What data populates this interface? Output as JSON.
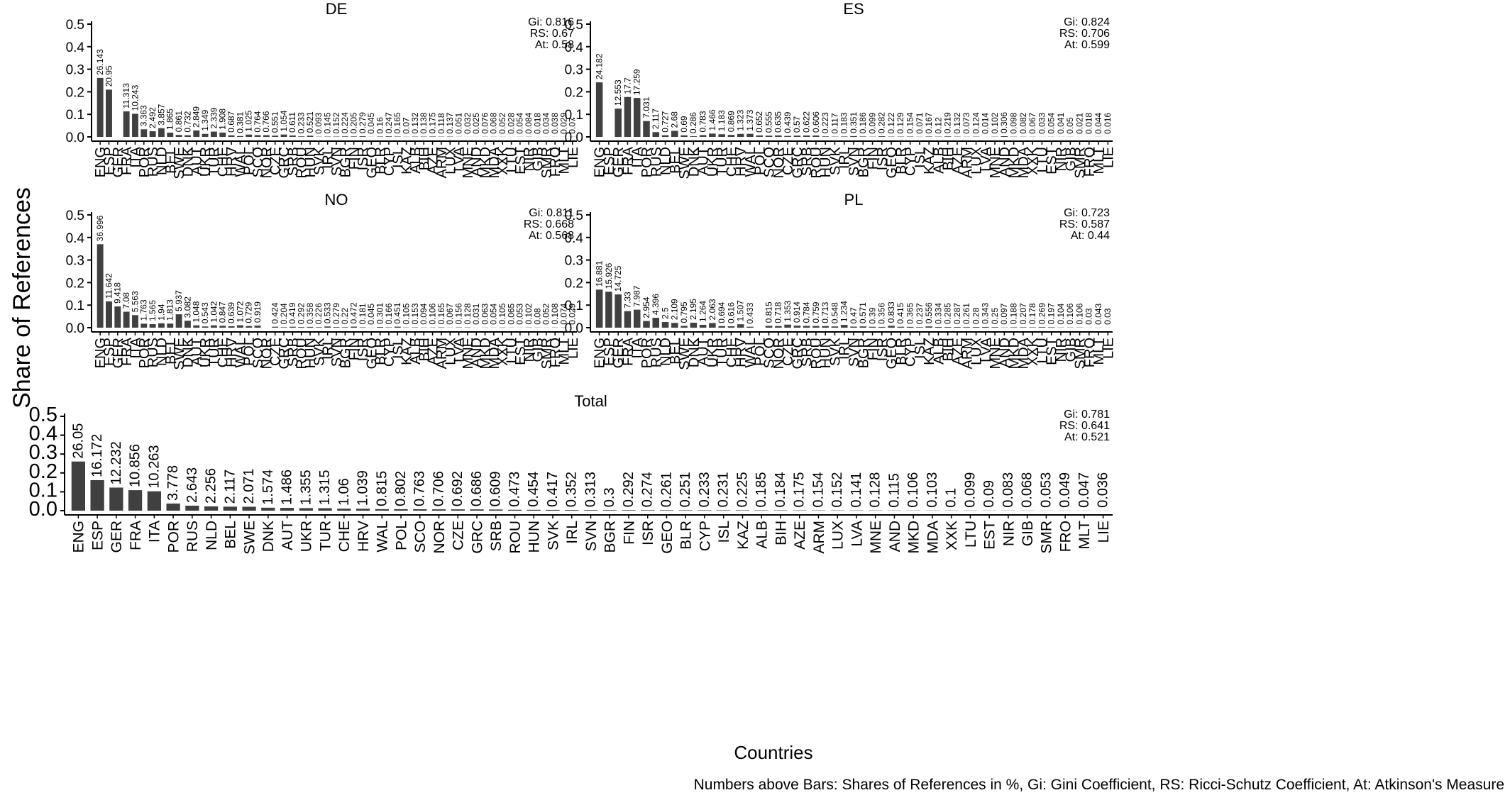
{
  "figure": {
    "ylabel": "Share of References",
    "xlabel": "Countries",
    "caption": "Numbers above Bars: Shares of References in %, Gi: Gini Coefficient, RS: Ricci-Schutz Coefficient, At: Atkinson's Measure",
    "bar_color": "#404040"
  },
  "chart_data": [
    {
      "type": "bar",
      "title": "DE",
      "ylim": [
        0,
        0.5
      ],
      "yticks": [
        0,
        0.1,
        0.2,
        0.3,
        0.4,
        0.5
      ],
      "ytick_labels": [
        "0.0",
        "0.1",
        "0.2",
        "0.3",
        "0.4",
        "0.5"
      ],
      "stats": [
        "Gi: 0.816",
        "RS: 0.67",
        "At: 0.58"
      ],
      "categories": [
        "ENG",
        "ESP",
        "GER",
        "FRA",
        "ITA",
        "POR",
        "RUS",
        "NLD",
        "BEL",
        "SWE",
        "DNK",
        "AUT",
        "UKR",
        "TUR",
        "CHE",
        "HRV",
        "WAL",
        "POL",
        "SCO",
        "NOR",
        "CZE",
        "GRC",
        "SRB",
        "ROU",
        "HUN",
        "SVK",
        "IRL",
        "SVN",
        "BGR",
        "FIN",
        "ISR",
        "GEO",
        "BLR",
        "CYP",
        "ISL",
        "KAZ",
        "ALB",
        "BIH",
        "AZE",
        "ARM",
        "LUX",
        "LVA",
        "MNE",
        "AND",
        "MKD",
        "MDA",
        "XXK",
        "LTU",
        "EST",
        "NIR",
        "GIB",
        "SMR",
        "FRO",
        "MLT",
        "LIE"
      ],
      "labels": [
        "26.143",
        "20.95",
        "",
        "11.313",
        "10.243",
        "3.363",
        "2.492",
        "3.857",
        "1.865",
        "0.861",
        "0.732",
        "2.849",
        "1.349",
        "2.339",
        "1.908",
        "0.687",
        "0.381",
        "1.025",
        "0.764",
        "0.766",
        "0.551",
        "1.054",
        "0.611",
        "0.233",
        "0.521",
        "0.093",
        "0.145",
        "0.152",
        "0.224",
        "0.205",
        "0.279",
        "0.045",
        "0.16",
        "0.247",
        "0.165",
        "0.07",
        "0.132",
        "0.138",
        "0.175",
        "0.118",
        "0.137",
        "0.051",
        "0.032",
        "0.025",
        "0.076",
        "0.068",
        "0.052",
        "0.028",
        "0.054",
        "0.084",
        "0.018",
        "0.034",
        "0.038",
        "0.029",
        "0.07"
      ],
      "values": [
        0.26143,
        0.2095,
        0,
        0.11313,
        0.10243,
        0.03363,
        0.02492,
        0.03857,
        0.01865,
        0.00861,
        0.00732,
        0.02849,
        0.01349,
        0.02339,
        0.01908,
        0.00687,
        0.00381,
        0.01025,
        0.00764,
        0.00766,
        0.00551,
        0.01054,
        0.00611,
        0.00233,
        0.00521,
        0.00093,
        0.00145,
        0.00152,
        0.00224,
        0.00205,
        0.00279,
        0.00045,
        0.0016,
        0.00247,
        0.00165,
        0.0007,
        0.00132,
        0.00138,
        0.00175,
        0.00118,
        0.00137,
        0.00051,
        0.00032,
        0.00025,
        0.00076,
        0.00068,
        0.00052,
        0.00028,
        0.00054,
        0.00084,
        0.00018,
        0.00034,
        0.00038,
        0.00029,
        0.0007
      ]
    },
    {
      "type": "bar",
      "title": "ES",
      "ylim": [
        0,
        0.5
      ],
      "yticks": [
        0,
        0.1,
        0.2,
        0.3,
        0.4,
        0.5
      ],
      "ytick_labels": [
        "0.0",
        "0.1",
        "0.2",
        "0.3",
        "0.4",
        "0.5"
      ],
      "stats": [
        "Gi: 0.824",
        "RS: 0.706",
        "At: 0.599"
      ],
      "categories": [
        "ENG",
        "ESP",
        "GER",
        "FRA",
        "ITA",
        "POR",
        "RUS",
        "NLD",
        "BEL",
        "SWE",
        "DNK",
        "AUT",
        "UKR",
        "TUR",
        "CHE",
        "HRV",
        "WAL",
        "POL",
        "SCO",
        "NOR",
        "CZE",
        "GRC",
        "SRB",
        "ROU",
        "HUN",
        "SVK",
        "IRL",
        "SVN",
        "BGR",
        "FIN",
        "ISR",
        "GEO",
        "BLR",
        "CYP",
        "ISL",
        "KAZ",
        "ALB",
        "BIH",
        "AZE",
        "ARM",
        "LUX",
        "LVA",
        "MNE",
        "AND",
        "MKD",
        "MDA",
        "XXK",
        "LTU",
        "EST",
        "NIR",
        "GIB",
        "SMR",
        "FRO",
        "MLT",
        "LIE"
      ],
      "labels": [
        "24.182",
        "",
        "12.553",
        "17.7",
        "17.259",
        "7.031",
        "2.117",
        "0.727",
        "2.68",
        "0.69",
        "0.286",
        "0.783",
        "1.466",
        "1.183",
        "0.869",
        "1.323",
        "1.373",
        "0.652",
        "0.555",
        "0.635",
        "0.439",
        "0.57",
        "0.622",
        "0.606",
        "0.223",
        "0.117",
        "0.183",
        "0.351",
        "0.186",
        "0.099",
        "0.282",
        "0.122",
        "0.129",
        "0.154",
        "0.071",
        "0.167",
        "0.12",
        "0.219",
        "0.132",
        "0.073",
        "0.124",
        "0.014",
        "0.102",
        "0.306",
        "0.098",
        "0.082",
        "0.067",
        "0.033",
        "0.054",
        "0.041",
        "0.05",
        "0.021",
        "0.018",
        "0.044",
        "0.016"
      ],
      "values": [
        0.24182,
        0,
        0.12553,
        0.177,
        0.17259,
        0.07031,
        0.02117,
        0.00727,
        0.0268,
        0.0069,
        0.00286,
        0.00783,
        0.01466,
        0.01183,
        0.00869,
        0.01323,
        0.01373,
        0.00652,
        0.00555,
        0.00635,
        0.00439,
        0.0057,
        0.00622,
        0.00606,
        0.00223,
        0.00117,
        0.00183,
        0.00351,
        0.00186,
        0.00099,
        0.00282,
        0.00122,
        0.00129,
        0.00154,
        0.00071,
        0.00167,
        0.0012,
        0.00219,
        0.00132,
        0.00073,
        0.00124,
        0.00014,
        0.00102,
        0.00306,
        0.00098,
        0.00082,
        0.00067,
        0.00033,
        0.00054,
        0.00041,
        0.0005,
        0.00021,
        0.00018,
        0.00044,
        0.00016
      ]
    },
    {
      "type": "bar",
      "title": "NO",
      "ylim": [
        0,
        0.5
      ],
      "yticks": [
        0,
        0.1,
        0.2,
        0.3,
        0.4,
        0.5
      ],
      "ytick_labels": [
        "0.0",
        "0.1",
        "0.2",
        "0.3",
        "0.4",
        "0.5"
      ],
      "stats": [
        "Gi: 0.811",
        "RS: 0.668",
        "At: 0.568"
      ],
      "categories": [
        "ENG",
        "ESP",
        "GER",
        "FRA",
        "ITA",
        "POR",
        "RUS",
        "NLD",
        "BEL",
        "SWE",
        "DNK",
        "AUT",
        "UKR",
        "TUR",
        "CHE",
        "HRV",
        "WAL",
        "POL",
        "SCO",
        "NOR",
        "CZE",
        "GRC",
        "SRB",
        "ROU",
        "HUN",
        "SVK",
        "IRL",
        "SVN",
        "BGR",
        "FIN",
        "ISR",
        "GEO",
        "BLR",
        "CYP",
        "ISL",
        "KAZ",
        "ALB",
        "BIH",
        "AZE",
        "ARM",
        "LUX",
        "LVA",
        "MNE",
        "AND",
        "MKD",
        "MDA",
        "XXK",
        "LTU",
        "EST",
        "NIR",
        "GIB",
        "SMR",
        "FRO",
        "MLT",
        "LIE"
      ],
      "labels": [
        "36.996",
        "11.642",
        "9.418",
        "7.08",
        "5.563",
        "1.763",
        "1.565",
        "1.94",
        "1.813",
        "5.937",
        "3.082",
        "1.048",
        "0.543",
        "1.042",
        "0.847",
        "0.639",
        "1.072",
        "0.729",
        "0.919",
        "",
        "0.424",
        "0.204",
        "0.419",
        "0.292",
        "0.358",
        "0.226",
        "0.533",
        "0.279",
        "0.22",
        "0.472",
        "0.181",
        "0.045",
        "0.301",
        "0.166",
        "0.451",
        "0.105",
        "0.153",
        "0.094",
        "0.106",
        "0.165",
        "0.067",
        "0.156",
        "0.128",
        "0.031",
        "0.063",
        "0.054",
        "0.105",
        "0.065",
        "0.053",
        "0.102",
        "0.08",
        "0.052",
        "0.108",
        "0.074",
        "0.029"
      ],
      "values": [
        0.36996,
        0.11642,
        0.09418,
        0.0708,
        0.05563,
        0.01763,
        0.01565,
        0.0194,
        0.01813,
        0.05937,
        0.03082,
        0.01048,
        0.00543,
        0.01042,
        0.00847,
        0.00639,
        0.01072,
        0.00729,
        0.00919,
        0,
        0.00424,
        0.00204,
        0.00419,
        0.00292,
        0.00358,
        0.00226,
        0.00533,
        0.00279,
        0.0022,
        0.00472,
        0.00181,
        0.00045,
        0.00301,
        0.00166,
        0.00451,
        0.00105,
        0.00153,
        0.00094,
        0.00106,
        0.00165,
        0.00067,
        0.00156,
        0.00128,
        0.00031,
        0.00063,
        0.00054,
        0.00105,
        0.00065,
        0.00053,
        0.00102,
        0.0008,
        0.00052,
        0.00108,
        0.00074,
        0.00029
      ]
    },
    {
      "type": "bar",
      "title": "PL",
      "ylim": [
        0,
        0.5
      ],
      "yticks": [
        0,
        0.1,
        0.2,
        0.3,
        0.4,
        0.5
      ],
      "ytick_labels": [
        "0.0",
        "0.1",
        "0.2",
        "0.3",
        "0.4",
        "0.5"
      ],
      "stats": [
        "Gi: 0.723",
        "RS: 0.587",
        "At: 0.44"
      ],
      "categories": [
        "ENG",
        "ESP",
        "GER",
        "FRA",
        "ITA",
        "POR",
        "RUS",
        "NLD",
        "BEL",
        "SWE",
        "DNK",
        "AUT",
        "UKR",
        "TUR",
        "CHE",
        "HRV",
        "WAL",
        "POL",
        "SCO",
        "NOR",
        "CZE",
        "GRC",
        "SRB",
        "ROU",
        "HUN",
        "SVK",
        "IRL",
        "SVN",
        "BGR",
        "FIN",
        "ISR",
        "GEO",
        "BLR",
        "CYP",
        "ISL",
        "KAZ",
        "ALB",
        "BIH",
        "AZE",
        "ARM",
        "LUX",
        "LVA",
        "MNE",
        "AND",
        "MKD",
        "MDA",
        "XXK",
        "LTU",
        "EST",
        "NIR",
        "GIB",
        "SMR",
        "FRO",
        "MLT",
        "LIE"
      ],
      "labels": [
        "16.881",
        "15.926",
        "14.725",
        "7.33",
        "7.987",
        "2.954",
        "4.396",
        "2.5",
        "2.109",
        "0.795",
        "2.195",
        "1.264",
        "2.063",
        "0.694",
        "0.616",
        "1.507",
        "0.433",
        "",
        "0.815",
        "0.718",
        "1.353",
        "0.914",
        "0.784",
        "0.759",
        "0.713",
        "0.548",
        "1.234",
        "0.47",
        "0.571",
        "0.39",
        "0.356",
        "0.833",
        "0.415",
        "0.365",
        "0.237",
        "0.556",
        "0.334",
        "0.285",
        "0.287",
        "0.261",
        "0.28",
        "0.343",
        "0.25",
        "0.097",
        "0.188",
        "0.207",
        "0.178",
        "0.269",
        "0.197",
        "0.104",
        "0.106",
        "0.106",
        "0.03",
        "0.043",
        "0.03"
      ],
      "values": [
        0.16881,
        0.15926,
        0.14725,
        0.0733,
        0.07987,
        0.02954,
        0.04396,
        0.025,
        0.02109,
        0.00795,
        0.02195,
        0.01264,
        0.02063,
        0.00694,
        0.00616,
        0.01507,
        0.00433,
        0,
        0.00815,
        0.00718,
        0.01353,
        0.00914,
        0.00784,
        0.00759,
        0.00713,
        0.00548,
        0.01234,
        0.0047,
        0.00571,
        0.0039,
        0.00356,
        0.00833,
        0.00415,
        0.00365,
        0.00237,
        0.00556,
        0.00334,
        0.00285,
        0.00287,
        0.00261,
        0.0028,
        0.00343,
        0.0025,
        0.00097,
        0.00188,
        0.00207,
        0.00178,
        0.00269,
        0.00197,
        0.00104,
        0.00106,
        0.00106,
        0.0003,
        0.00043,
        0.0003
      ]
    },
    {
      "type": "bar",
      "title": "Total",
      "ylim": [
        0,
        0.5
      ],
      "yticks": [
        0,
        0.1,
        0.2,
        0.3,
        0.4,
        0.5
      ],
      "ytick_labels": [
        "0.0",
        "0.1",
        "0.2",
        "0.3",
        "0.4",
        "0.5"
      ],
      "stats": [
        "Gi: 0.781",
        "RS: 0.641",
        "At: 0.521"
      ],
      "categories": [
        "ENG",
        "ESP",
        "GER",
        "FRA",
        "ITA",
        "POR",
        "RUS",
        "NLD",
        "BEL",
        "SWE",
        "DNK",
        "AUT",
        "UKR",
        "TUR",
        "CHE",
        "HRV",
        "WAL",
        "POL",
        "SCO",
        "NOR",
        "CZE",
        "GRC",
        "SRB",
        "ROU",
        "HUN",
        "SVK",
        "IRL",
        "SVN",
        "BGR",
        "FIN",
        "ISR",
        "GEO",
        "BLR",
        "CYP",
        "ISL",
        "KAZ",
        "ALB",
        "BIH",
        "AZE",
        "ARM",
        "LUX",
        "LVA",
        "MNE",
        "AND",
        "MKD",
        "MDA",
        "XXK",
        "LTU",
        "EST",
        "NIR",
        "GIB",
        "SMR",
        "FRO",
        "MLT",
        "LIE"
      ],
      "labels": [
        "26.05",
        "16.172",
        "12.232",
        "10.856",
        "10.263",
        "3.778",
        "2.643",
        "2.256",
        "2.117",
        "2.071",
        "1.574",
        "1.486",
        "1.355",
        "1.315",
        "1.06",
        "1.039",
        "0.815",
        "0.802",
        "0.763",
        "0.706",
        "0.692",
        "0.686",
        "0.609",
        "0.473",
        "0.454",
        "0.417",
        "0.352",
        "0.313",
        "0.3",
        "0.292",
        "0.274",
        "0.261",
        "0.251",
        "0.233",
        "0.231",
        "0.225",
        "0.185",
        "0.184",
        "0.175",
        "0.154",
        "0.152",
        "0.141",
        "0.128",
        "0.115",
        "0.106",
        "0.103",
        "0.1",
        "0.099",
        "0.09",
        "0.083",
        "0.068",
        "0.053",
        "0.049",
        "0.047",
        "0.036"
      ],
      "values": [
        0.2605,
        0.16172,
        0.12232,
        0.10856,
        0.10263,
        0.03778,
        0.02643,
        0.02256,
        0.02117,
        0.02071,
        0.01574,
        0.01486,
        0.01355,
        0.01315,
        0.0106,
        0.01039,
        0.00815,
        0.00802,
        0.00763,
        0.00706,
        0.00692,
        0.00686,
        0.00609,
        0.00473,
        0.00454,
        0.00417,
        0.00352,
        0.00313,
        0.003,
        0.00292,
        0.00274,
        0.00261,
        0.00251,
        0.00233,
        0.00231,
        0.00225,
        0.00185,
        0.00184,
        0.00175,
        0.00154,
        0.00152,
        0.00141,
        0.00128,
        0.00115,
        0.00106,
        0.00103,
        0.001,
        0.00099,
        0.0009,
        0.00083,
        0.00068,
        0.00053,
        0.00049,
        0.00047,
        0.00036
      ]
    }
  ]
}
